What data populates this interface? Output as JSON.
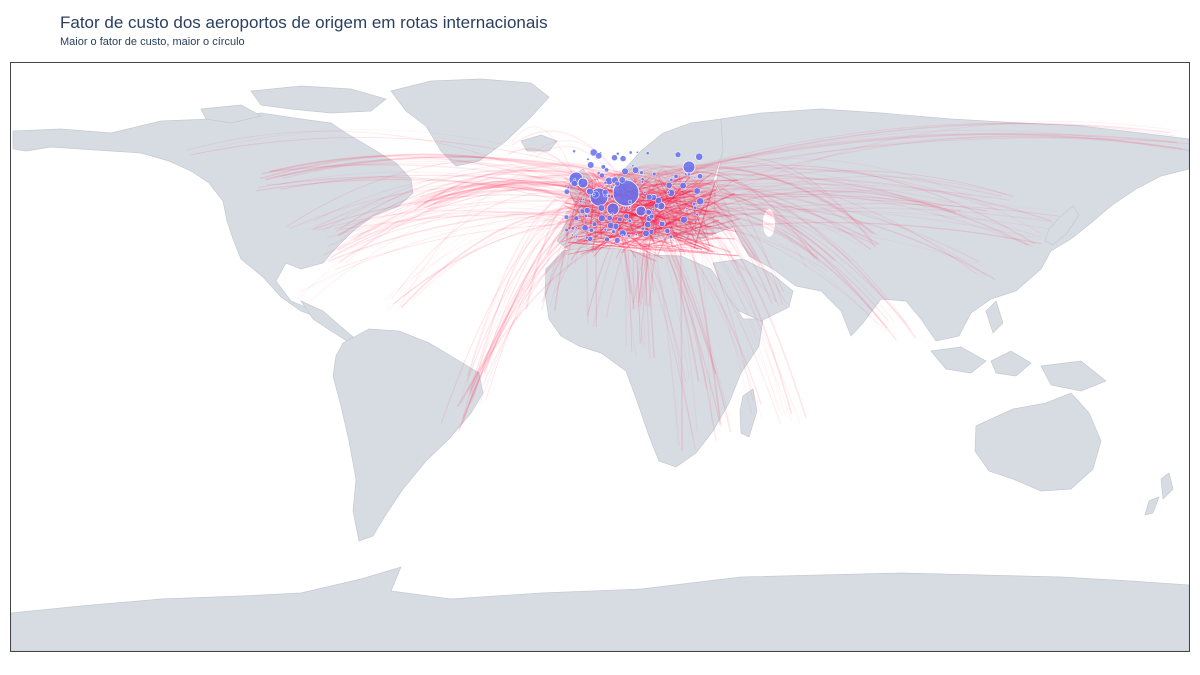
{
  "title": "Fator de custo dos aeroportos de origem em rotas internacionais",
  "subtitle": "Maior o fator de custo, maior o círculo",
  "map": {
    "projection": "equirectangular",
    "colors": {
      "land": "#d7dce3",
      "ocean": "#ffffff",
      "routes": "#ff1744",
      "airports": "#6470f0"
    }
  }
}
